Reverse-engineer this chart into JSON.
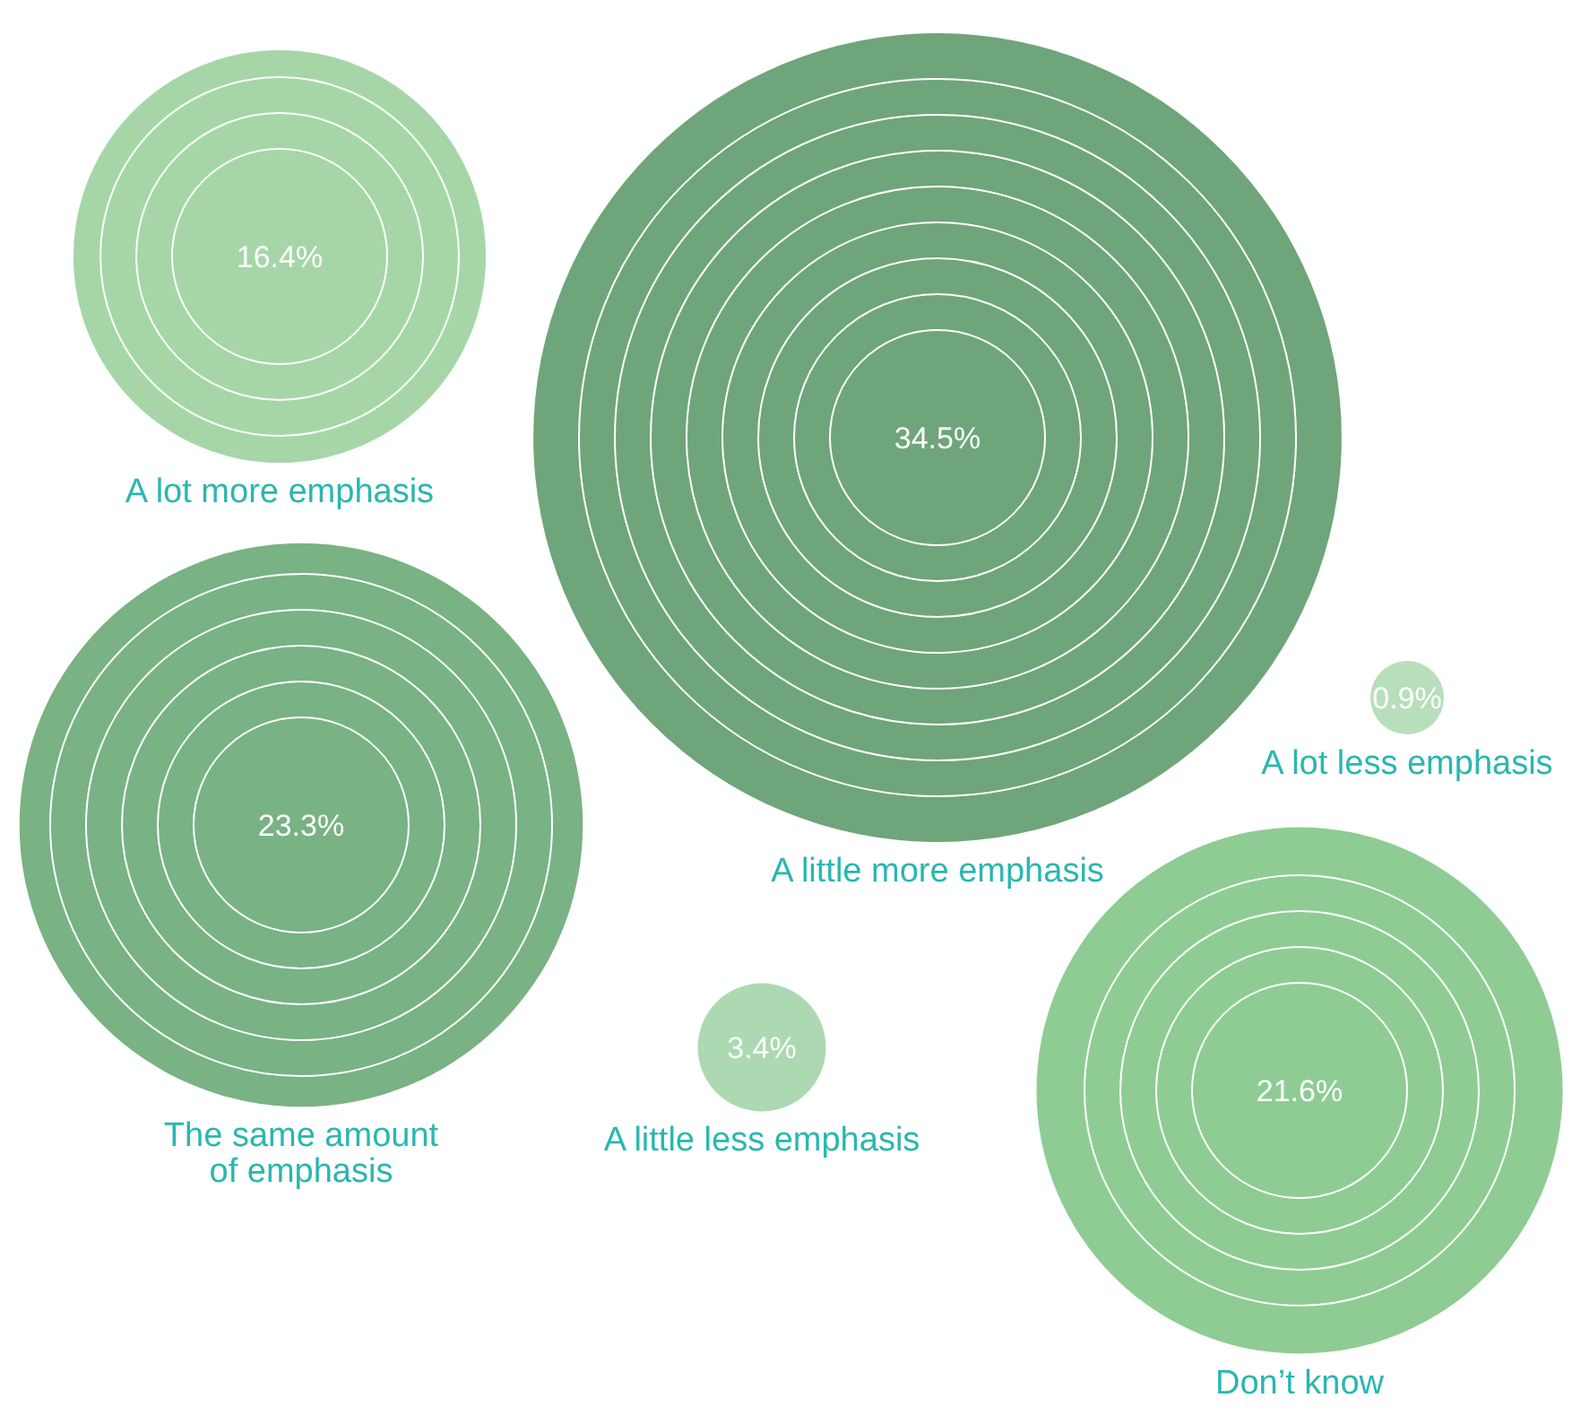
{
  "chart_data": {
    "type": "other",
    "categories": [
      "A lot more emphasis",
      "A little more emphasis",
      "A lot less emphasis",
      "The same amount of emphasis",
      "A little less emphasis",
      "Don’t know"
    ],
    "values": [
      16.4,
      34.5,
      0.9,
      23.3,
      3.4,
      21.6
    ],
    "value_labels": [
      "16.4%",
      "34.5%",
      "0.9%",
      "23.3%",
      "3.4%",
      "21.6%"
    ],
    "colors": [
      "#a6d6a8",
      "#6fa57a",
      "#b8dfbc",
      "#79b283",
      "#acd9b1",
      "#8ecc94"
    ]
  }
}
